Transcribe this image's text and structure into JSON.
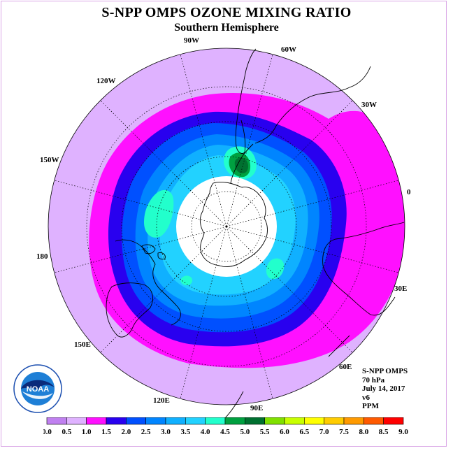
{
  "title": "S-NPP OMPS OZONE MIXING RATIO",
  "subtitle": "Southern Hemisphere",
  "longitude_labels": [
    "90W",
    "60W",
    "30W",
    "0",
    "30E",
    "60E",
    "90E",
    "120E",
    "150E",
    "180",
    "150W",
    "120W"
  ],
  "info": {
    "line1": "S-NPP OMPS",
    "line2": "70 hPa",
    "line3": "July 14, 2017",
    "line4": "v6",
    "line5": "PPM"
  },
  "logo_text": "NOAA",
  "colorbar": {
    "labels": [
      "0.0",
      "0.5",
      "1.0",
      "1.5",
      "2.0",
      "2.5",
      "3.0",
      "3.5",
      "4.0",
      "4.5",
      "5.0",
      "5.5",
      "6.0",
      "6.5",
      "7.0",
      "7.5",
      "8.0",
      "8.5",
      "9.0"
    ],
    "colors": [
      "#c080f0",
      "#dfb2ff",
      "#ff10ff",
      "#2900ef",
      "#0050ff",
      "#0085ff",
      "#10b0ff",
      "#22d2ff",
      "#22ffcc",
      "#00a040",
      "#007030",
      "#80e000",
      "#c8ff00",
      "#ffff00",
      "#ffcc00",
      "#ff9a00",
      "#ff5a00",
      "#ff0000",
      "#8a5a3a"
    ]
  },
  "colors": {
    "lavender": "#dfb2ff",
    "magenta": "#ff10ff",
    "deep_blue": "#2900ef",
    "blue": "#0050ff",
    "medium_blue": "#0085ff",
    "light_blue": "#10b0ff",
    "cyan": "#22d2ff",
    "aqua": "#22ffcc",
    "green": "#00a040",
    "dark_green": "#007030"
  }
}
